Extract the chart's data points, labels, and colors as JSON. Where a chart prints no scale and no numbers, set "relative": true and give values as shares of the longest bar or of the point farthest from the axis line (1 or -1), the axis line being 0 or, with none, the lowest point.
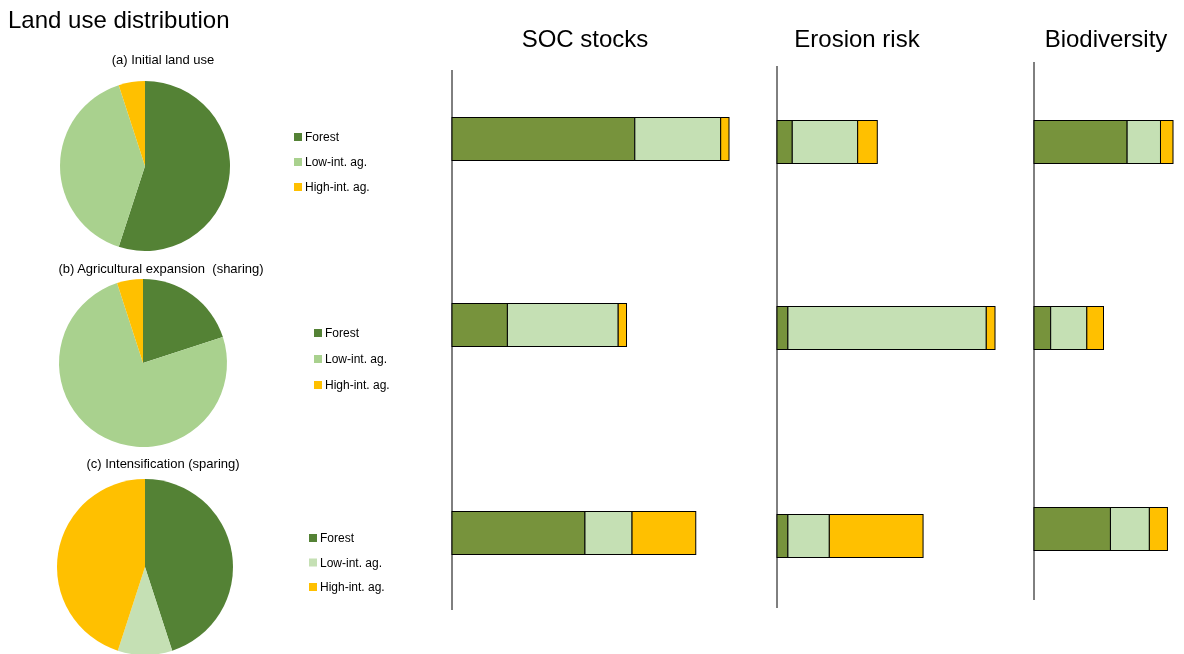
{
  "chart_data": [
    {
      "type": "pie",
      "title": "Land use distribution",
      "subtitle": "(a) Initial land use",
      "categories": [
        "Forest",
        "Low-int. ag.",
        "High-int. ag."
      ],
      "values": [
        55,
        40,
        5
      ],
      "colors": [
        "#548235",
        "#a9d18e",
        "#ffc000"
      ],
      "legend": "right"
    },
    {
      "type": "pie",
      "title": "(b) Agricultural expansion  (sharing)",
      "categories": [
        "Forest",
        "Low-int. ag.",
        "High-int. ag."
      ],
      "values": [
        20,
        75,
        5
      ],
      "colors": [
        "#548235",
        "#a9d18e",
        "#ffc000"
      ],
      "legend": "right"
    },
    {
      "type": "pie",
      "title": "(c) Intensification (sparing)",
      "categories": [
        "Forest",
        "Low-int. ag.",
        "High-int. ag."
      ],
      "values": [
        45,
        10,
        45
      ],
      "colors": [
        "#548235",
        "#c5e0b4",
        "#ffc000"
      ],
      "legend": "right"
    },
    {
      "type": "bar",
      "orientation": "horizontal",
      "stacked": true,
      "relative": true,
      "title": "SOC stocks",
      "categories": [
        null,
        null,
        null
      ],
      "series": [
        {
          "color": "#77933c",
          "values": [
            0.66,
            0.2,
            0.48
          ]
        },
        {
          "color": "#c5e0b4",
          "values": [
            0.31,
            0.4,
            0.17
          ]
        },
        {
          "color": "#ffc000",
          "values": [
            0.03,
            0.03,
            0.23
          ]
        }
      ]
    },
    {
      "type": "bar",
      "orientation": "horizontal",
      "stacked": true,
      "relative": true,
      "title": "Erosion risk",
      "categories": [
        null,
        null,
        null
      ],
      "series": [
        {
          "color": "#77933c",
          "values": [
            0.07,
            0.05,
            0.05
          ]
        },
        {
          "color": "#c5e0b4",
          "values": [
            0.3,
            0.91,
            0.19
          ]
        },
        {
          "color": "#ffc000",
          "values": [
            0.09,
            0.04,
            0.43
          ]
        }
      ]
    },
    {
      "type": "bar",
      "orientation": "horizontal",
      "stacked": true,
      "relative": true,
      "title": "Biodiversity",
      "categories": [
        null,
        null,
        null
      ],
      "series": [
        {
          "color": "#77933c",
          "values": [
            0.67,
            0.12,
            0.55
          ]
        },
        {
          "color": "#c5e0b4",
          "values": [
            0.24,
            0.26,
            0.28
          ]
        },
        {
          "color": "#ffc000",
          "values": [
            0.09,
            0.12,
            0.13
          ]
        }
      ]
    }
  ]
}
